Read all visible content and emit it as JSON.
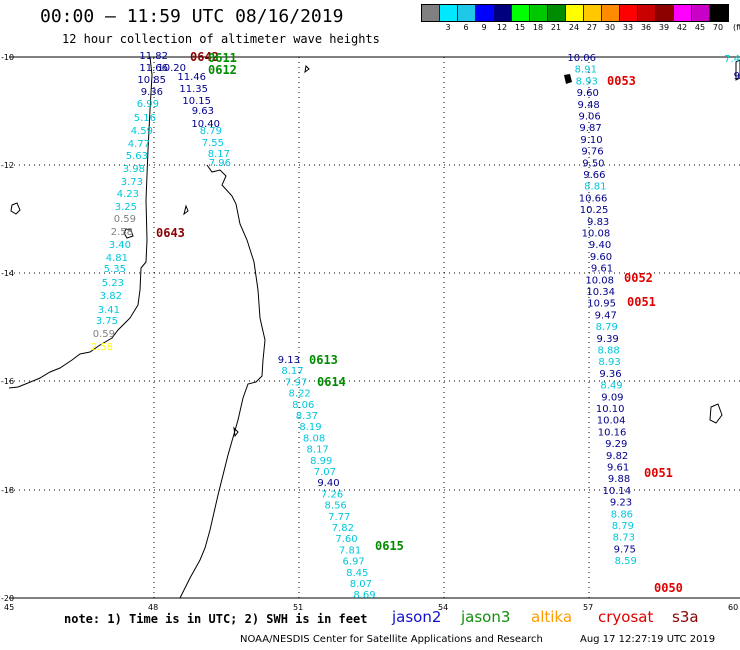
{
  "header": {
    "title": "00:00 – 11:59 UTC 08/16/2019",
    "subtitle": "12 hour collection of altimeter wave heights"
  },
  "legend": {
    "unit": "(ft)",
    "bins": [
      {
        "label": "",
        "color": "#808080"
      },
      {
        "label": "3",
        "color": "#00e8ff"
      },
      {
        "label": "6",
        "color": "#1ec8e6"
      },
      {
        "label": "9",
        "color": "#0000ff"
      },
      {
        "label": "12",
        "color": "#00007f"
      },
      {
        "label": "15",
        "color": "#00ff00"
      },
      {
        "label": "18",
        "color": "#00c800"
      },
      {
        "label": "21",
        "color": "#008c00"
      },
      {
        "label": "24",
        "color": "#ffff00"
      },
      {
        "label": "27",
        "color": "#ffc800"
      },
      {
        "label": "30",
        "color": "#ff8c00"
      },
      {
        "label": "33",
        "color": "#ff0000"
      },
      {
        "label": "36",
        "color": "#c80000"
      },
      {
        "label": "39",
        "color": "#8c0000"
      },
      {
        "label": "42",
        "color": "#ff00ff"
      },
      {
        "label": "45",
        "color": "#c800c8"
      },
      {
        "label": "70",
        "color": "#000000"
      }
    ]
  },
  "axes": {
    "lat_ticks": [
      "-10",
      "-12",
      "-14",
      "-16",
      "-18",
      "-20"
    ],
    "lon_ticks": [
      "45",
      "48",
      "51",
      "54",
      "57",
      "60"
    ]
  },
  "colors": {
    "light_cyan": "#00c8dc",
    "dark_blue": "#00008c",
    "gray": "#808080",
    "yellow": "#ffff00",
    "jason3_green": "#008c00",
    "cryosat_red": "#e00000",
    "s3a_darkred": "#8b0000"
  },
  "track_west": [
    {
      "v": "11.82",
      "c": "dark_blue"
    },
    {
      "v": "11.66",
      "c": "dark_blue"
    },
    {
      "v": "10.20",
      "c": "dark_blue"
    },
    {
      "v": "10.85",
      "c": "dark_blue"
    },
    {
      "v": "11.46",
      "c": "dark_blue"
    },
    {
      "v": "9.36",
      "c": "dark_blue"
    },
    {
      "v": "11.35",
      "c": "dark_blue"
    },
    {
      "v": "6.99",
      "c": "light_cyan"
    },
    {
      "v": "10.15",
      "c": "dark_blue"
    },
    {
      "v": "5.16",
      "c": "light_cyan"
    },
    {
      "v": "9.63",
      "c": "dark_blue"
    },
    {
      "v": "4.59",
      "c": "light_cyan"
    },
    {
      "v": "10.40",
      "c": "dark_blue"
    },
    {
      "v": "4.77",
      "c": "light_cyan"
    },
    {
      "v": "8.79",
      "c": "light_cyan"
    },
    {
      "v": "5.63",
      "c": "light_cyan"
    },
    {
      "v": "7.55",
      "c": "light_cyan"
    },
    {
      "v": "3.98",
      "c": "light_cyan"
    },
    {
      "v": "8.17",
      "c": "light_cyan"
    },
    {
      "v": "3.73",
      "c": "light_cyan"
    },
    {
      "v": "7.96",
      "c": "light_cyan"
    },
    {
      "v": "4.23",
      "c": "light_cyan"
    },
    {
      "v": "3.25",
      "c": "light_cyan"
    },
    {
      "v": "0.59",
      "c": "gray"
    },
    {
      "v": "2.58",
      "c": "gray"
    },
    {
      "v": "3.40",
      "c": "light_cyan"
    },
    {
      "v": "4.81",
      "c": "light_cyan"
    },
    {
      "v": "5.35",
      "c": "light_cyan"
    },
    {
      "v": "5.23",
      "c": "light_cyan"
    },
    {
      "v": "3.82",
      "c": "light_cyan"
    },
    {
      "v": "3.41",
      "c": "light_cyan"
    },
    {
      "v": "3.75",
      "c": "light_cyan"
    },
    {
      "v": "0.59",
      "c": "gray"
    },
    {
      "v": "2.58",
      "c": "yellow"
    }
  ],
  "track_middle": [
    {
      "v": "9.13",
      "c": "dark_blue"
    },
    {
      "v": "8.17",
      "c": "light_cyan"
    },
    {
      "v": "7.97",
      "c": "light_cyan"
    },
    {
      "v": "8.22",
      "c": "light_cyan"
    },
    {
      "v": "8.06",
      "c": "light_cyan"
    },
    {
      "v": "8.37",
      "c": "light_cyan"
    },
    {
      "v": "8.19",
      "c": "light_cyan"
    },
    {
      "v": "8.08",
      "c": "light_cyan"
    },
    {
      "v": "8.17",
      "c": "light_cyan"
    },
    {
      "v": "8.99",
      "c": "light_cyan"
    },
    {
      "v": "7.07",
      "c": "light_cyan"
    },
    {
      "v": "9.40",
      "c": "dark_blue"
    },
    {
      "v": "7.26",
      "c": "light_cyan"
    },
    {
      "v": "8.56",
      "c": "light_cyan"
    },
    {
      "v": "7.77",
      "c": "light_cyan"
    },
    {
      "v": "7.82",
      "c": "light_cyan"
    },
    {
      "v": "7.60",
      "c": "light_cyan"
    },
    {
      "v": "7.81",
      "c": "light_cyan"
    },
    {
      "v": "6.97",
      "c": "light_cyan"
    },
    {
      "v": "8.45",
      "c": "light_cyan"
    },
    {
      "v": "8.07",
      "c": "light_cyan"
    },
    {
      "v": "8.69",
      "c": "light_cyan"
    }
  ],
  "track_east": [
    {
      "v": "10.06",
      "c": "dark_blue"
    },
    {
      "v": "8.91",
      "c": "light_cyan"
    },
    {
      "v": "8.93",
      "c": "light_cyan"
    },
    {
      "v": "9.60",
      "c": "dark_blue"
    },
    {
      "v": "9.48",
      "c": "dark_blue"
    },
    {
      "v": "9.06",
      "c": "dark_blue"
    },
    {
      "v": "9.87",
      "c": "dark_blue"
    },
    {
      "v": "9.10",
      "c": "dark_blue"
    },
    {
      "v": "9.76",
      "c": "dark_blue"
    },
    {
      "v": "9.50",
      "c": "dark_blue"
    },
    {
      "v": "9.66",
      "c": "dark_blue"
    },
    {
      "v": "8.81",
      "c": "light_cyan"
    },
    {
      "v": "10.66",
      "c": "dark_blue"
    },
    {
      "v": "10.25",
      "c": "dark_blue"
    },
    {
      "v": "9.83",
      "c": "dark_blue"
    },
    {
      "v": "10.08",
      "c": "dark_blue"
    },
    {
      "v": "9.40",
      "c": "dark_blue"
    },
    {
      "v": "9.60",
      "c": "dark_blue"
    },
    {
      "v": "9.61",
      "c": "dark_blue"
    },
    {
      "v": "10.08",
      "c": "dark_blue"
    },
    {
      "v": "10.34",
      "c": "dark_blue"
    },
    {
      "v": "10.95",
      "c": "dark_blue"
    },
    {
      "v": "9.47",
      "c": "dark_blue"
    },
    {
      "v": "8.79",
      "c": "light_cyan"
    },
    {
      "v": "9.39",
      "c": "dark_blue"
    },
    {
      "v": "8.88",
      "c": "light_cyan"
    },
    {
      "v": "8.93",
      "c": "light_cyan"
    },
    {
      "v": "9.36",
      "c": "dark_blue"
    },
    {
      "v": "8.49",
      "c": "light_cyan"
    },
    {
      "v": "9.09",
      "c": "dark_blue"
    },
    {
      "v": "10.10",
      "c": "dark_blue"
    },
    {
      "v": "10.04",
      "c": "dark_blue"
    },
    {
      "v": "10.16",
      "c": "dark_blue"
    },
    {
      "v": "9.29",
      "c": "dark_blue"
    },
    {
      "v": "9.82",
      "c": "dark_blue"
    },
    {
      "v": "9.61",
      "c": "dark_blue"
    },
    {
      "v": "9.88",
      "c": "dark_blue"
    },
    {
      "v": "10.14",
      "c": "dark_blue"
    },
    {
      "v": "9.23",
      "c": "dark_blue"
    },
    {
      "v": "8.86",
      "c": "light_cyan"
    },
    {
      "v": "8.79",
      "c": "light_cyan"
    },
    {
      "v": "8.73",
      "c": "light_cyan"
    },
    {
      "v": "9.75",
      "c": "dark_blue"
    },
    {
      "v": "8.59",
      "c": "light_cyan"
    }
  ],
  "edge_labels": [
    {
      "v": "7.4",
      "c": "light_cyan"
    },
    {
      "v": "9",
      "c": "dark_blue"
    }
  ],
  "time_labels": [
    {
      "v": "0642",
      "c": "s3a_darkred"
    },
    {
      "v": "0611",
      "c": "jason3_green"
    },
    {
      "v": "0612",
      "c": "jason3_green"
    },
    {
      "v": "0643",
      "c": "s3a_darkred"
    },
    {
      "v": "0613",
      "c": "jason3_green"
    },
    {
      "v": "0614",
      "c": "jason3_green"
    },
    {
      "v": "0615",
      "c": "jason3_green"
    },
    {
      "v": "0053",
      "c": "cryosat_red"
    },
    {
      "v": "0052",
      "c": "cryosat_red"
    },
    {
      "v": "0051",
      "c": "cryosat_red"
    },
    {
      "v": "0051",
      "c": "cryosat_red"
    },
    {
      "v": "0050",
      "c": "cryosat_red"
    }
  ],
  "footer": {
    "note": "note: 1) Time is in UTC; 2) SWH is in feet",
    "satellites": {
      "jason2": "jason2",
      "jason3": "jason3",
      "altika": "altika",
      "cryosat": "cryosat",
      "s3a": "s3a"
    },
    "credit": "NOAA/NESDIS Center for Satellite Applications and Research",
    "timestamp": "Aug 17 12:27:19 UTC 2019"
  }
}
